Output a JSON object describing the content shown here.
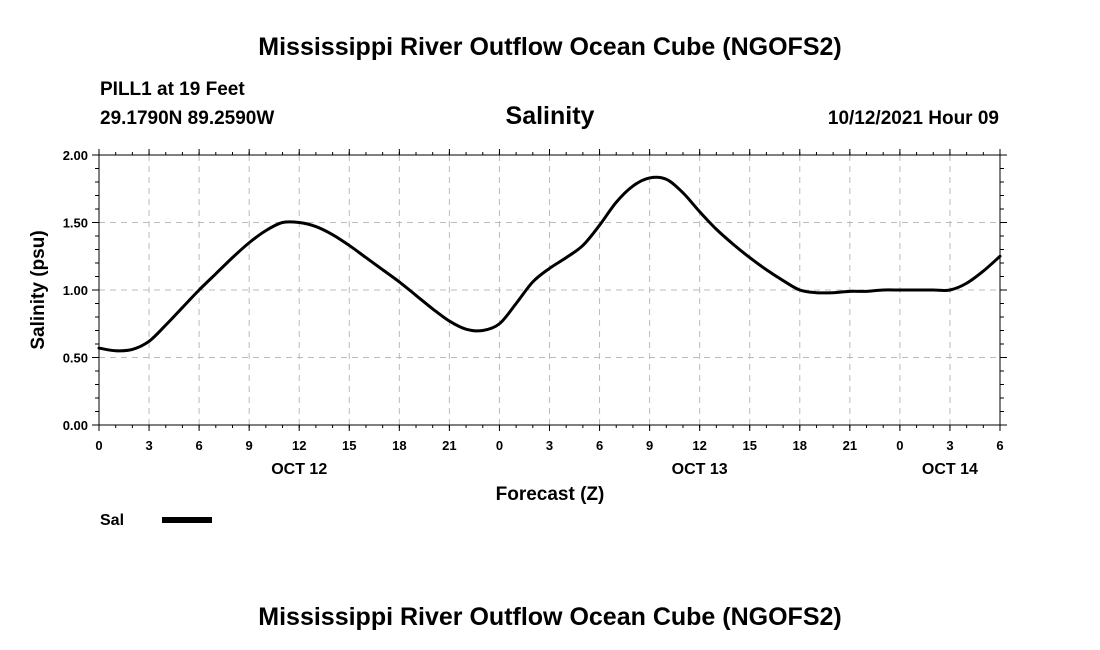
{
  "header": {
    "title": "Mississippi River Outflow Ocean Cube (NGOFS2)",
    "station": "PILL1 at 19 Feet",
    "coords": "29.1790N  89.2590W",
    "variable": "Salinity",
    "datetime": "10/12/2021 Hour 09"
  },
  "footer": {
    "title": "Mississippi River Outflow Ocean Cube (NGOFS2)"
  },
  "legend": {
    "label": "Sal"
  },
  "chart_data": {
    "type": "line",
    "title": "Salinity",
    "xlabel": "Forecast (Z)",
    "ylabel": "Salinity (psu)",
    "ylim": [
      0,
      2
    ],
    "xlim": [
      0,
      54
    ],
    "grid": true,
    "legend_position": "bottom-left",
    "yticks": [
      "0.00",
      "0.50",
      "1.00",
      "1.50",
      "2.00"
    ],
    "xticks": [
      "0",
      "3",
      "6",
      "9",
      "12",
      "15",
      "18",
      "21",
      "0",
      "3",
      "6",
      "9",
      "12",
      "15",
      "18",
      "21",
      "0",
      "3",
      "6"
    ],
    "date_labels": [
      {
        "hour": 12,
        "label": "OCT 12"
      },
      {
        "hour": 36,
        "label": "OCT 13"
      },
      {
        "hour": 51,
        "label": "OCT 14"
      }
    ],
    "series": [
      {
        "name": "Sal",
        "color": "#000000",
        "x": [
          0,
          1,
          2,
          3,
          4,
          5,
          6,
          7,
          8,
          9,
          10,
          11,
          12,
          13,
          14,
          15,
          16,
          17,
          18,
          19,
          20,
          21,
          22,
          23,
          24,
          25,
          26,
          27,
          28,
          29,
          30,
          31,
          32,
          33,
          34,
          35,
          36,
          37,
          38,
          39,
          40,
          41,
          42,
          43,
          44,
          45,
          46,
          47,
          48,
          49,
          50,
          51,
          52,
          53,
          54
        ],
        "values": [
          0.57,
          0.55,
          0.56,
          0.62,
          0.74,
          0.87,
          1.0,
          1.12,
          1.24,
          1.35,
          1.44,
          1.5,
          1.5,
          1.47,
          1.41,
          1.33,
          1.24,
          1.15,
          1.06,
          0.96,
          0.86,
          0.77,
          0.71,
          0.7,
          0.75,
          0.9,
          1.06,
          1.16,
          1.24,
          1.33,
          1.48,
          1.65,
          1.77,
          1.83,
          1.82,
          1.72,
          1.58,
          1.45,
          1.34,
          1.24,
          1.15,
          1.07,
          1.0,
          0.98,
          0.98,
          0.99,
          0.99,
          1.0,
          1.0,
          1.0,
          1.0,
          1.0,
          1.05,
          1.14,
          1.25
        ]
      }
    ]
  }
}
